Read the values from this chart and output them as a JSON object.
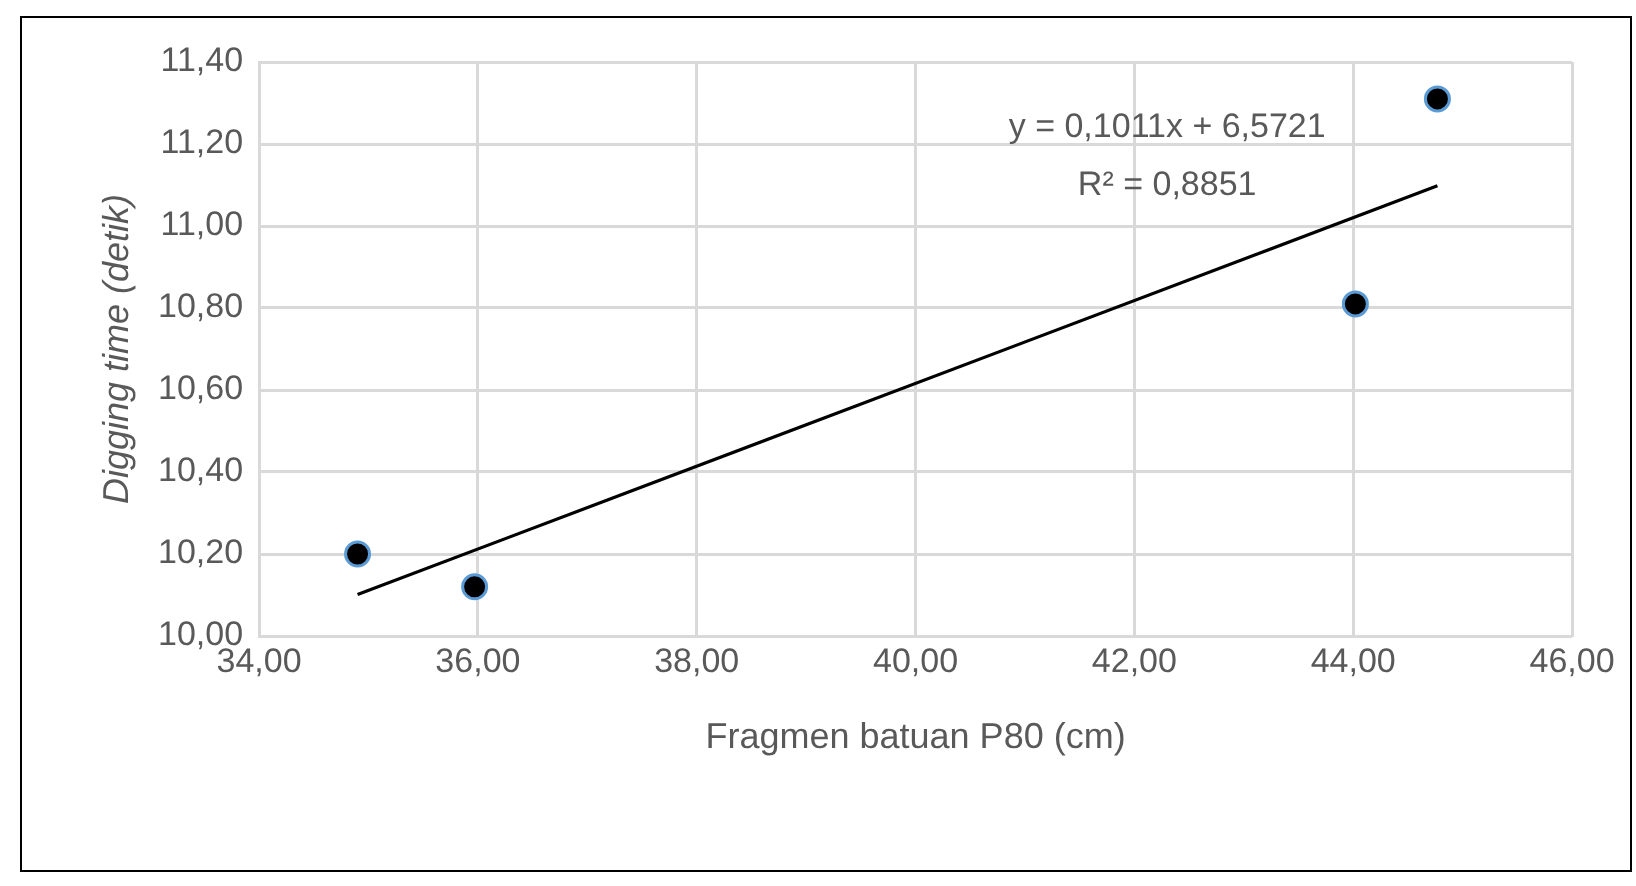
{
  "chart_data": {
    "type": "scatter",
    "xlabel": "Fragmen batuan P80 (cm)",
    "ylabel": "Digging time (detik)",
    "series": [
      {
        "color": "#000000",
        "marker": "circle",
        "x": [
          34.9,
          35.97,
          44.02,
          44.77
        ],
        "values": [
          10.2,
          10.12,
          10.81,
          11.31
        ]
      },
      {
        "type": "line",
        "color": "#000000",
        "x": [
          34.9,
          44.77
        ],
        "values": [
          10.101,
          11.098
        ]
      }
    ],
    "annotations": [
      "y = 0,1011x + 6,5721",
      "R² = 0,8851"
    ],
    "xlim": [
      34,
      46
    ],
    "xticks": [
      {
        "value": 34,
        "label": "34,00"
      },
      {
        "value": 36,
        "label": "36,00"
      },
      {
        "value": 38,
        "label": "38,00"
      },
      {
        "value": 40,
        "label": "40,00"
      },
      {
        "value": 42,
        "label": "42,00"
      },
      {
        "value": 44,
        "label": "44,00"
      },
      {
        "value": 46,
        "label": "46,00"
      }
    ],
    "ylim": [
      10,
      11.4
    ],
    "yticks": [
      {
        "value": 10,
        "label": "10,00"
      },
      {
        "value": 10.2,
        "label": "10,20"
      },
      {
        "value": 10.4,
        "label": "10,40"
      },
      {
        "value": 10.6,
        "label": "10,60"
      },
      {
        "value": 10.8,
        "label": "10,80"
      },
      {
        "value": 11,
        "label": "11,00"
      },
      {
        "value": 11.2,
        "label": "11,20"
      },
      {
        "value": 11.4,
        "label": "11,40"
      }
    ],
    "grid": true,
    "legend": false
  }
}
